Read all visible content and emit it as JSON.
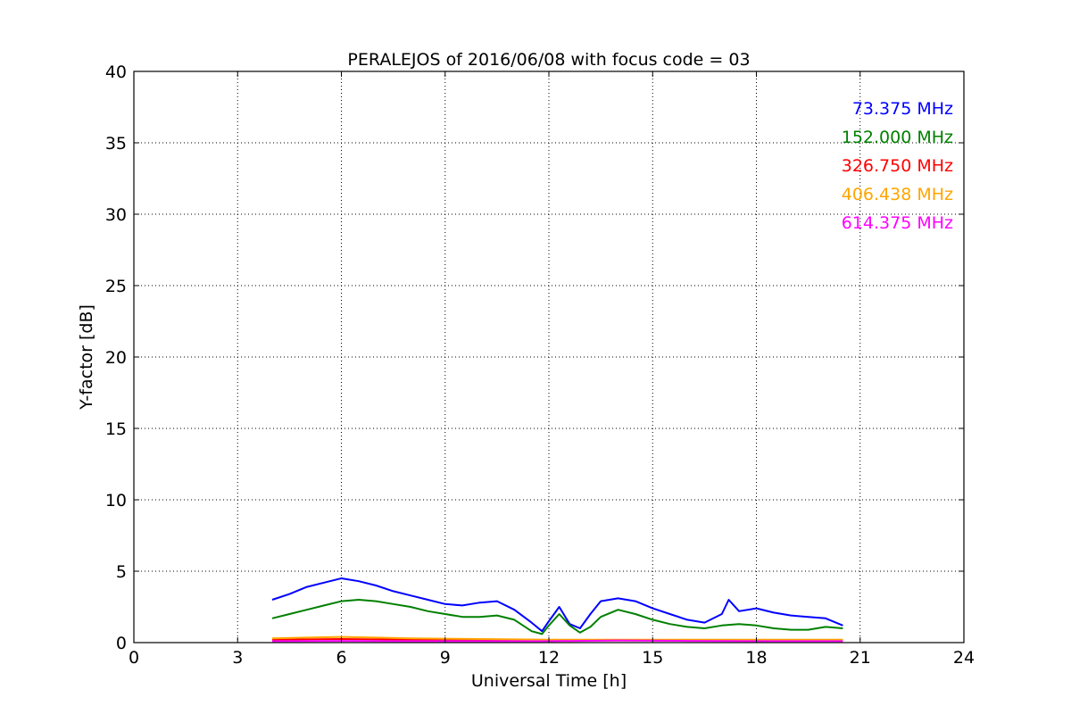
{
  "chart_data": {
    "type": "line",
    "title": "PERALEJOS of 2016/06/08 with focus code = 03",
    "xlabel": "Universal Time [h]",
    "ylabel": "Y-factor [dB]",
    "xlim": [
      0,
      24
    ],
    "ylim": [
      0,
      40
    ],
    "xticks": [
      "0",
      "3",
      "6",
      "9",
      "12",
      "15",
      "18",
      "21",
      "24"
    ],
    "yticks": [
      "0",
      "5",
      "10",
      "15",
      "20",
      "25",
      "30",
      "35",
      "40"
    ],
    "grid": true,
    "legend_position": "top-right",
    "series": [
      {
        "name": "73.375 MHz",
        "color": "#0000ff",
        "x": [
          4.0,
          4.5,
          5.0,
          5.5,
          6.0,
          6.5,
          7.0,
          7.5,
          8.0,
          8.5,
          9.0,
          9.5,
          10.0,
          10.5,
          11.0,
          11.5,
          11.8,
          12.0,
          12.3,
          12.6,
          12.9,
          13.2,
          13.5,
          14.0,
          14.5,
          15.0,
          15.5,
          16.0,
          16.5,
          17.0,
          17.2,
          17.5,
          18.0,
          18.5,
          19.0,
          19.5,
          20.0,
          20.5
        ],
        "y": [
          3.0,
          3.4,
          3.9,
          4.2,
          4.5,
          4.3,
          4.0,
          3.6,
          3.3,
          3.0,
          2.7,
          2.6,
          2.8,
          2.9,
          2.3,
          1.4,
          0.8,
          1.5,
          2.5,
          1.3,
          1.0,
          2.0,
          2.9,
          3.1,
          2.9,
          2.4,
          2.0,
          1.6,
          1.4,
          2.0,
          3.0,
          2.2,
          2.4,
          2.1,
          1.9,
          1.8,
          1.7,
          1.2
        ]
      },
      {
        "name": "152.000 MHz",
        "color": "#008000",
        "x": [
          4.0,
          4.5,
          5.0,
          5.5,
          6.0,
          6.5,
          7.0,
          7.5,
          8.0,
          8.5,
          9.0,
          9.5,
          10.0,
          10.5,
          11.0,
          11.5,
          11.8,
          12.0,
          12.3,
          12.6,
          12.9,
          13.2,
          13.5,
          14.0,
          14.5,
          15.0,
          15.5,
          16.0,
          16.5,
          17.0,
          17.5,
          18.0,
          18.5,
          19.0,
          19.5,
          20.0,
          20.5
        ],
        "y": [
          1.7,
          2.0,
          2.3,
          2.6,
          2.9,
          3.0,
          2.9,
          2.7,
          2.5,
          2.2,
          2.0,
          1.8,
          1.8,
          1.9,
          1.6,
          0.8,
          0.6,
          1.2,
          2.0,
          1.2,
          0.7,
          1.1,
          1.8,
          2.3,
          2.0,
          1.6,
          1.3,
          1.1,
          1.0,
          1.2,
          1.3,
          1.2,
          1.0,
          0.9,
          0.9,
          1.1,
          1.0
        ]
      },
      {
        "name": "326.750 MHz",
        "color": "#ff0000",
        "x": [
          4.0,
          6.0,
          8.0,
          10.0,
          12.0,
          14.0,
          16.0,
          18.0,
          20.5
        ],
        "y": [
          0.2,
          0.25,
          0.2,
          0.15,
          0.15,
          0.15,
          0.15,
          0.15,
          0.15
        ]
      },
      {
        "name": "406.438 MHz",
        "color": "#ffa500",
        "x": [
          4.0,
          5.0,
          6.0,
          7.0,
          8.0,
          10.0,
          12.0,
          14.0,
          16.0,
          18.0,
          20.5
        ],
        "y": [
          0.3,
          0.35,
          0.4,
          0.35,
          0.3,
          0.25,
          0.2,
          0.2,
          0.2,
          0.2,
          0.2
        ]
      },
      {
        "name": "614.375 MHz",
        "color": "#ff00ff",
        "x": [
          4.0,
          6.0,
          8.0,
          10.0,
          12.0,
          14.0,
          16.0,
          18.0,
          20.5
        ],
        "y": [
          0.1,
          0.12,
          0.1,
          0.1,
          0.1,
          0.15,
          0.12,
          0.1,
          0.1
        ]
      }
    ]
  }
}
